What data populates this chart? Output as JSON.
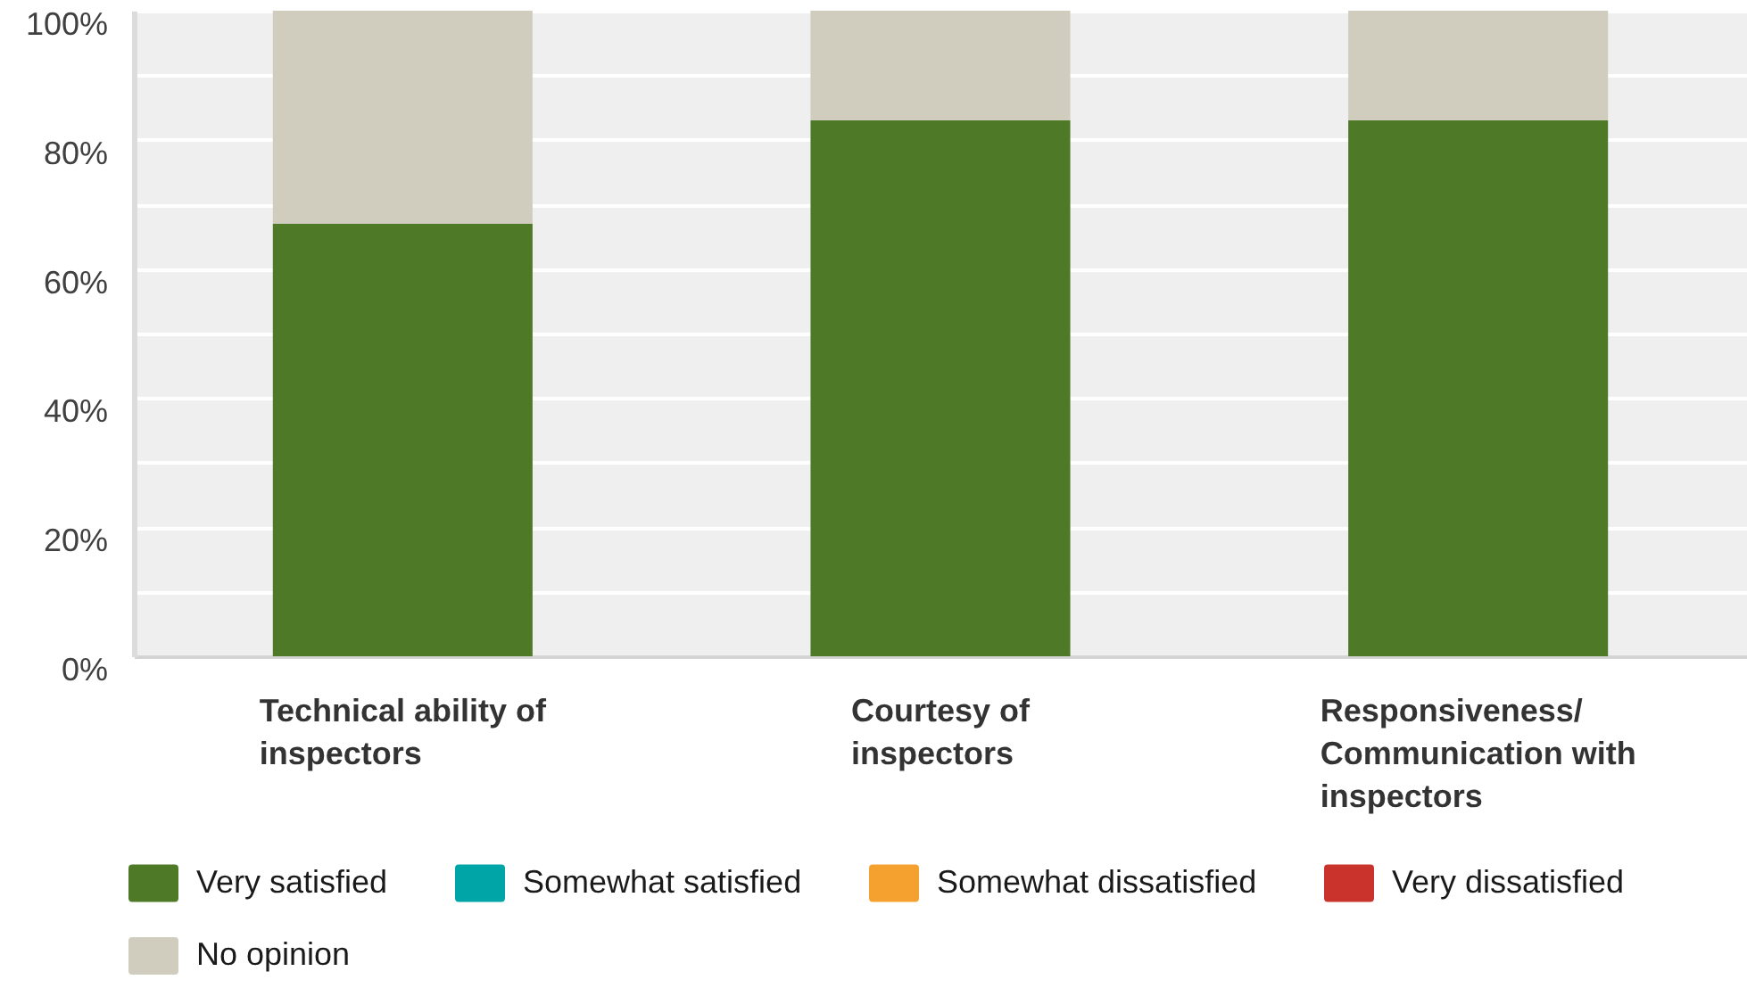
{
  "chart_data": {
    "type": "bar",
    "stacked": true,
    "categories": [
      "Technical ability of inspectors",
      "Courtesy of inspectors",
      "Responsiveness/ Communication with inspectors"
    ],
    "series": [
      {
        "name": "Very satisfied",
        "color": "#4e7a28",
        "values": [
          67,
          83,
          83
        ]
      },
      {
        "name": "Somewhat satisfied",
        "color": "#00a5a8",
        "values": [
          0,
          0,
          0
        ]
      },
      {
        "name": "Somewhat dissatisfied",
        "color": "#f4a12f",
        "values": [
          0,
          0,
          0
        ]
      },
      {
        "name": "Very dissatisfied",
        "color": "#c9332b",
        "values": [
          0,
          0,
          0
        ]
      },
      {
        "name": "No opinion",
        "color": "#d0cdbf",
        "values": [
          33,
          17,
          17
        ]
      }
    ],
    "ylim": [
      0,
      100
    ],
    "yticks": [
      {
        "value": 0,
        "label": "0%"
      },
      {
        "value": 10,
        "label": null
      },
      {
        "value": 20,
        "label": "20%"
      },
      {
        "value": 30,
        "label": null
      },
      {
        "value": 40,
        "label": "40%"
      },
      {
        "value": 50,
        "label": null
      },
      {
        "value": 60,
        "label": "60%"
      },
      {
        "value": 70,
        "label": null
      },
      {
        "value": 80,
        "label": "80%"
      },
      {
        "value": 90,
        "label": null
      },
      {
        "value": 100,
        "label": "100%"
      }
    ],
    "grid": "y",
    "legend": "bottom"
  }
}
